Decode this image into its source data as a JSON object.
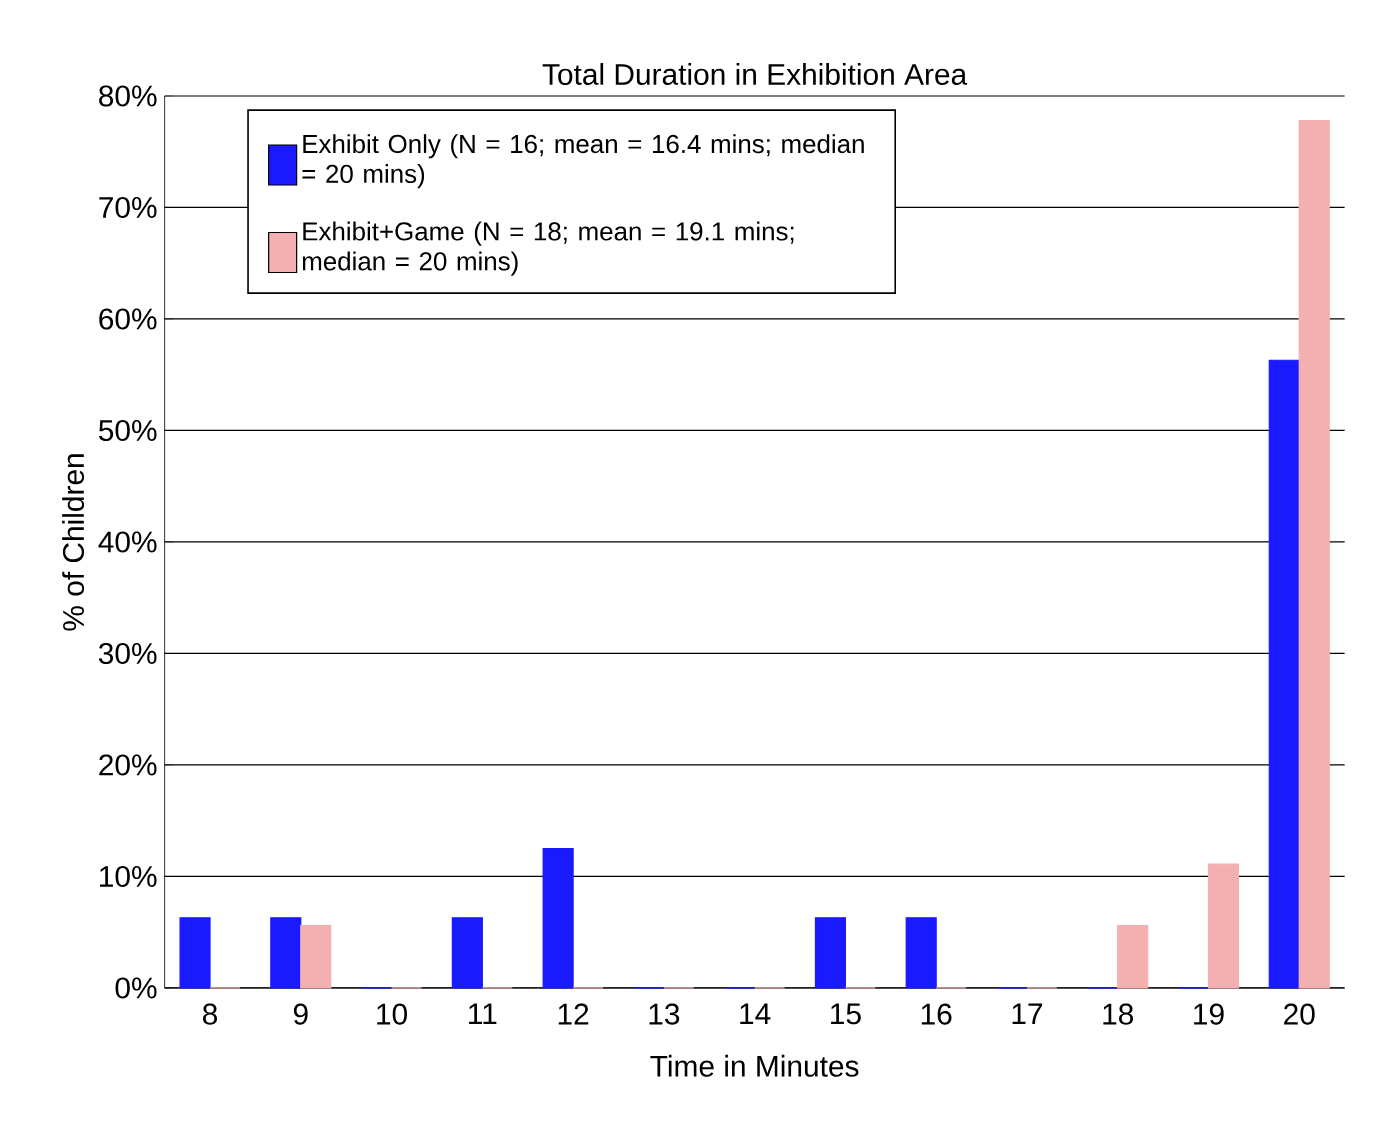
{
  "chart_data": {
    "type": "bar",
    "title": "Total Duration in Exhibition Area",
    "xlabel": "Time in Minutes",
    "ylabel": "% of Children",
    "categories": [
      "8",
      "9",
      "10",
      "11",
      "12",
      "13",
      "14",
      "15",
      "16",
      "17",
      "18",
      "19",
      "20"
    ],
    "series": [
      {
        "name": "Exhibit Only (N = 16; mean = 16.4 mins; median = 20 mins)",
        "color": "#1a1aff",
        "values": [
          6.3,
          6.3,
          0,
          6.3,
          12.5,
          0,
          0,
          6.3,
          6.3,
          0,
          0,
          0,
          56.3
        ]
      },
      {
        "name": "Exhibit+Game (N = 18; mean = 19.1 mins; median = 20 mins)",
        "color": "#f4b0b0",
        "values": [
          0,
          5.6,
          0,
          0,
          0,
          0,
          0,
          0,
          0,
          0,
          5.6,
          11.1,
          77.8
        ]
      }
    ],
    "ylim": [
      0,
      80
    ],
    "yticks": [
      {
        "value": 0,
        "label": "0%"
      },
      {
        "value": 10,
        "label": "10%"
      },
      {
        "value": 20,
        "label": "20%"
      },
      {
        "value": 30,
        "label": "30%"
      },
      {
        "value": 40,
        "label": "40%"
      },
      {
        "value": 50,
        "label": "50%"
      },
      {
        "value": 60,
        "label": "60%"
      },
      {
        "value": 70,
        "label": "70%"
      },
      {
        "value": 80,
        "label": "80%"
      }
    ],
    "grid": "y",
    "legend": "top"
  }
}
